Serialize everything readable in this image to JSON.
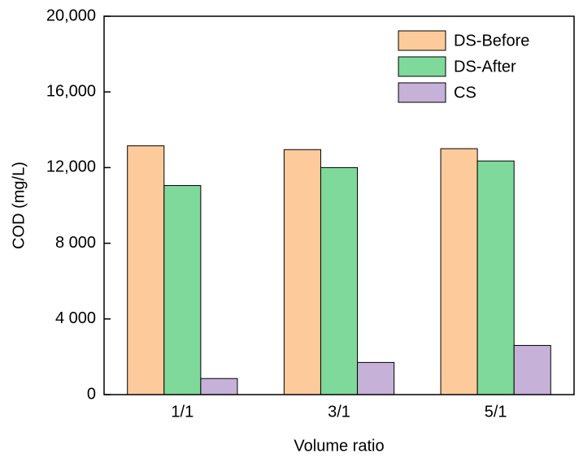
{
  "chart_data": {
    "type": "bar",
    "xlabel": "Volume ratio",
    "ylabel": "COD (mg/L)",
    "categories": [
      "1/1",
      "3/1",
      "5/1"
    ],
    "series": [
      {
        "name": "DS-Before",
        "color": "#fdcb9b",
        "values": [
          13150,
          12950,
          13000
        ]
      },
      {
        "name": "DS-After",
        "color": "#7fd99b",
        "values": [
          11050,
          12000,
          12350
        ]
      },
      {
        "name": "CS",
        "color": "#c6b1d8",
        "values": [
          850,
          1700,
          2600
        ]
      }
    ],
    "ylim": [
      0,
      20000
    ],
    "yticks": [
      0,
      {
        "value": 4000,
        "label": "4 000"
      },
      {
        "value": 8000,
        "label": "8 000"
      },
      {
        "value": 12000,
        "label": "12,000"
      },
      {
        "value": 16000,
        "label": "16,000"
      },
      {
        "value": 20000,
        "label": "20,000"
      }
    ],
    "legend": "upper right"
  }
}
